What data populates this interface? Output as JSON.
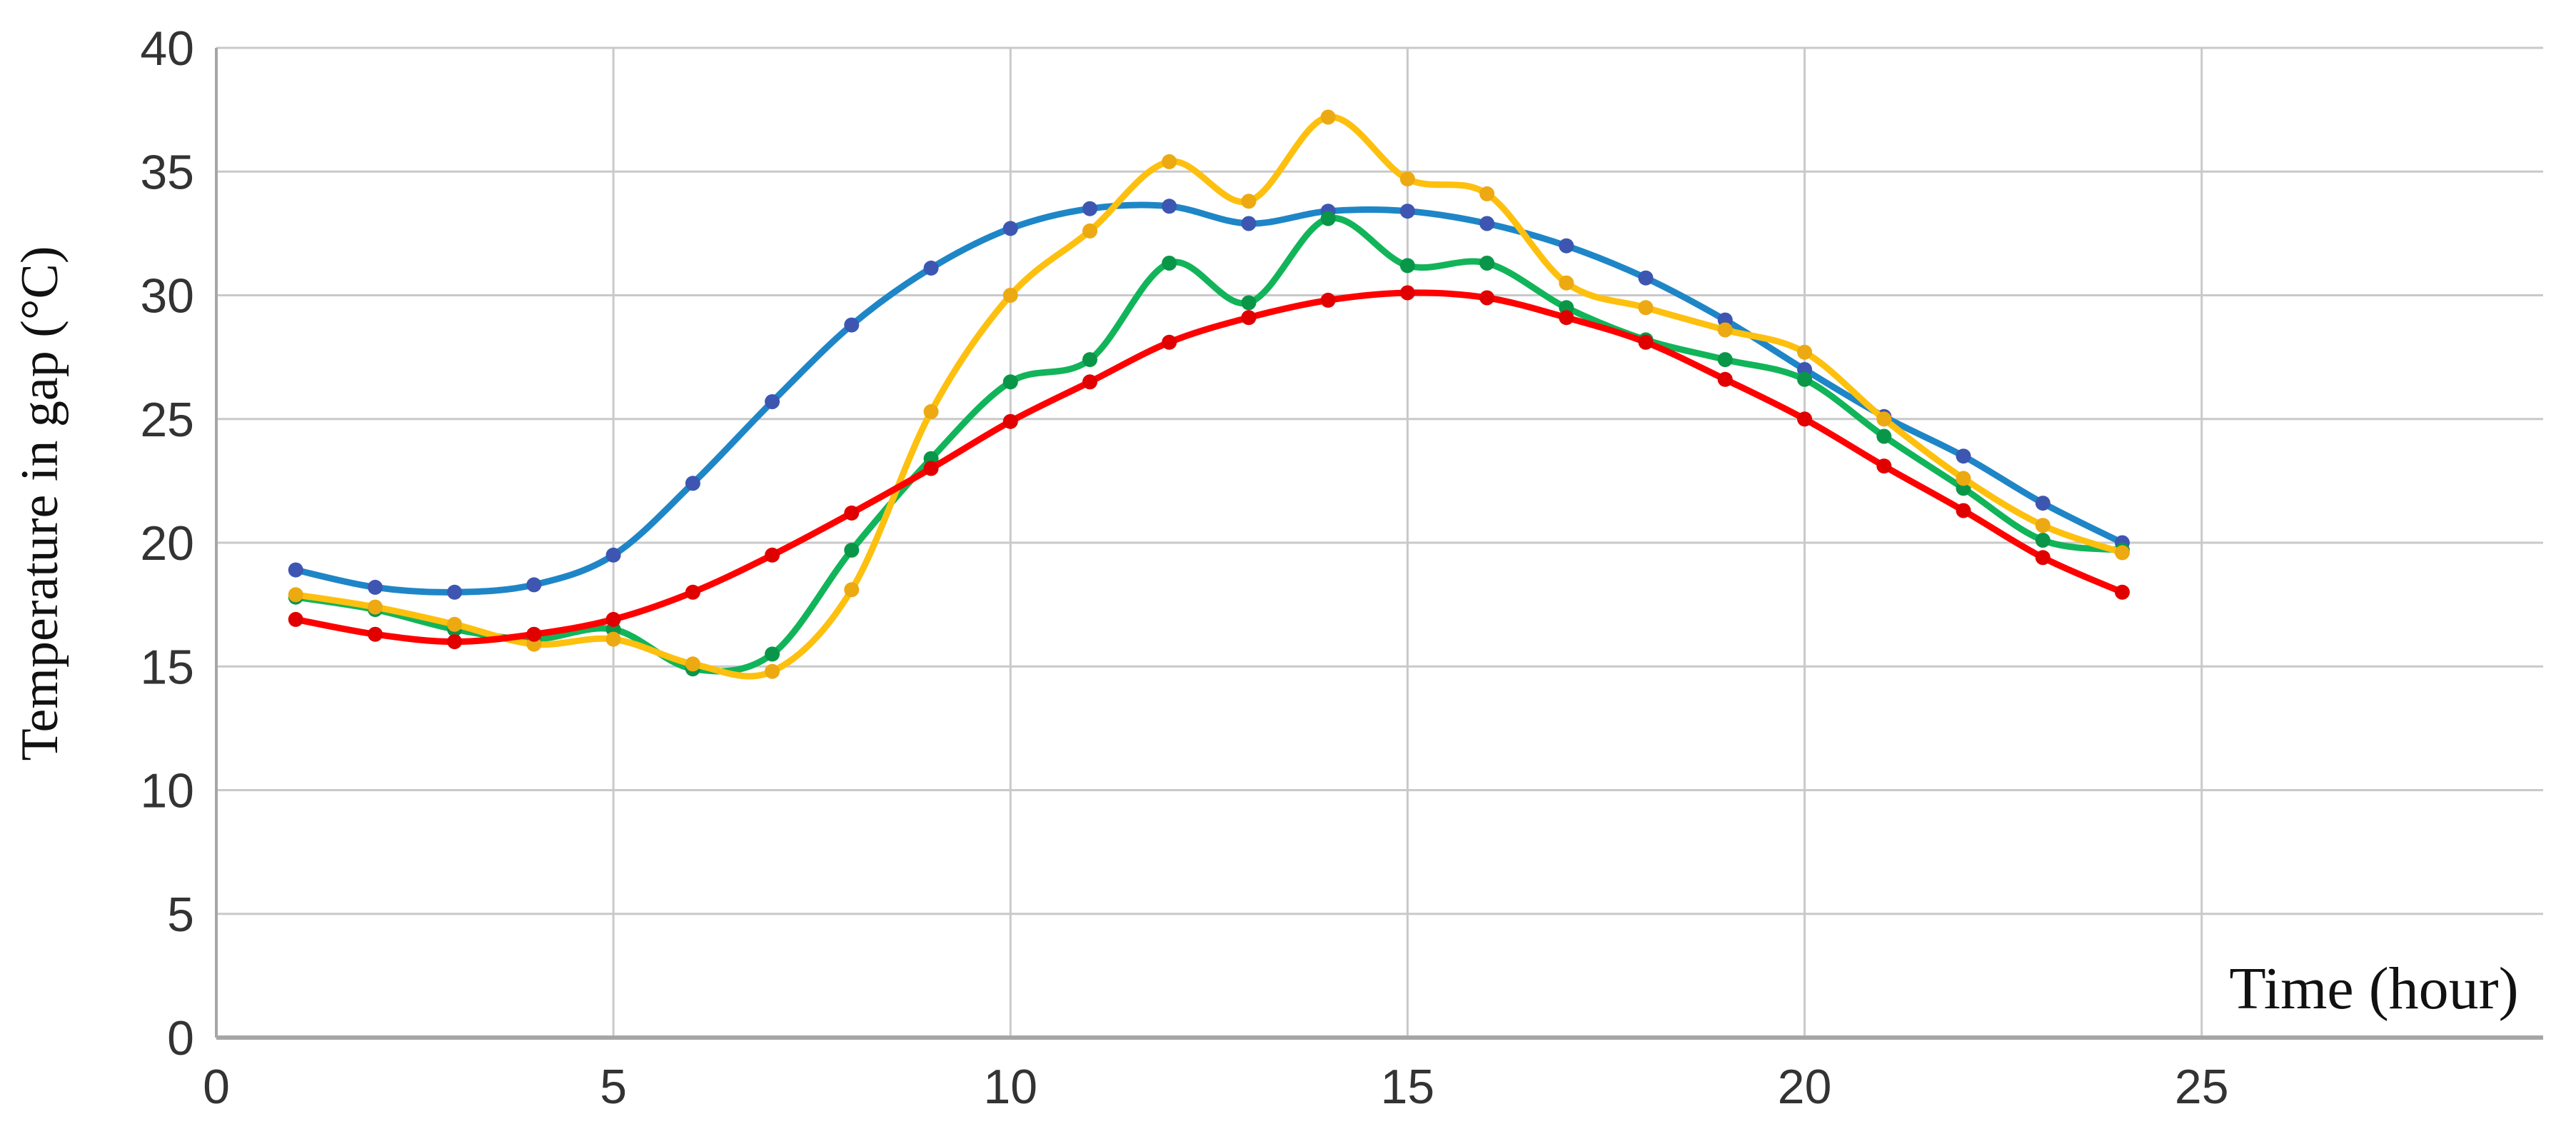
{
  "chart_data": {
    "type": "line",
    "title": "",
    "xlabel": "Time (hour)",
    "ylabel": "Temperature in gap (°C)",
    "x": [
      1,
      2,
      3,
      4,
      5,
      6,
      7,
      8,
      9,
      10,
      11,
      12,
      13,
      14,
      15,
      16,
      17,
      18,
      19,
      20,
      21,
      22,
      23,
      24
    ],
    "series": [
      {
        "name": "blue",
        "line_color": "#1e86c7",
        "marker_color": "#3d56b2",
        "values": [
          18.9,
          18.2,
          18.0,
          18.3,
          19.5,
          22.4,
          25.7,
          28.8,
          31.1,
          32.7,
          33.5,
          33.6,
          32.9,
          33.4,
          33.4,
          32.9,
          32.0,
          30.7,
          29.0,
          27.0,
          25.1,
          23.5,
          21.6,
          20.0
        ]
      },
      {
        "name": "green",
        "line_color": "#12b45a",
        "marker_color": "#0a9648",
        "values": [
          17.8,
          17.3,
          16.5,
          16.1,
          16.5,
          14.9,
          15.5,
          19.7,
          23.4,
          26.5,
          27.4,
          31.3,
          29.7,
          33.1,
          31.2,
          31.3,
          29.5,
          28.2,
          27.4,
          26.6,
          24.3,
          22.2,
          20.1,
          19.7
        ]
      },
      {
        "name": "yellow",
        "line_color": "#fec00f",
        "marker_color": "#eca912",
        "values": [
          17.9,
          17.4,
          16.7,
          15.9,
          16.1,
          15.1,
          14.8,
          18.1,
          25.3,
          30.0,
          32.6,
          35.4,
          33.8,
          37.2,
          34.7,
          34.1,
          30.5,
          29.5,
          28.6,
          27.7,
          25.0,
          22.6,
          20.7,
          19.6
        ]
      },
      {
        "name": "red",
        "line_color": "#ff0000",
        "marker_color": "#e00000",
        "values": [
          16.9,
          16.3,
          16.0,
          16.3,
          16.9,
          18.0,
          19.5,
          21.2,
          23.0,
          24.9,
          26.5,
          28.1,
          29.1,
          29.8,
          30.1,
          29.9,
          29.1,
          28.1,
          26.6,
          25.0,
          23.1,
          21.3,
          19.4,
          18.0
        ]
      }
    ],
    "xlim": [
      0,
      29.3
    ],
    "ylim": [
      0,
      40
    ],
    "x_ticks": [
      0,
      5,
      10,
      15,
      20,
      25
    ],
    "y_ticks": [
      0,
      5,
      10,
      15,
      20,
      25,
      30,
      35,
      40
    ],
    "grid": true,
    "legend": "none",
    "marker": "circle",
    "smooth": true
  },
  "colors": {
    "background": "#ffffff",
    "gridline": "#c9c9c9",
    "axis": "#a6a6a6",
    "tick_label": "#333333",
    "axis_title": "#111111"
  }
}
